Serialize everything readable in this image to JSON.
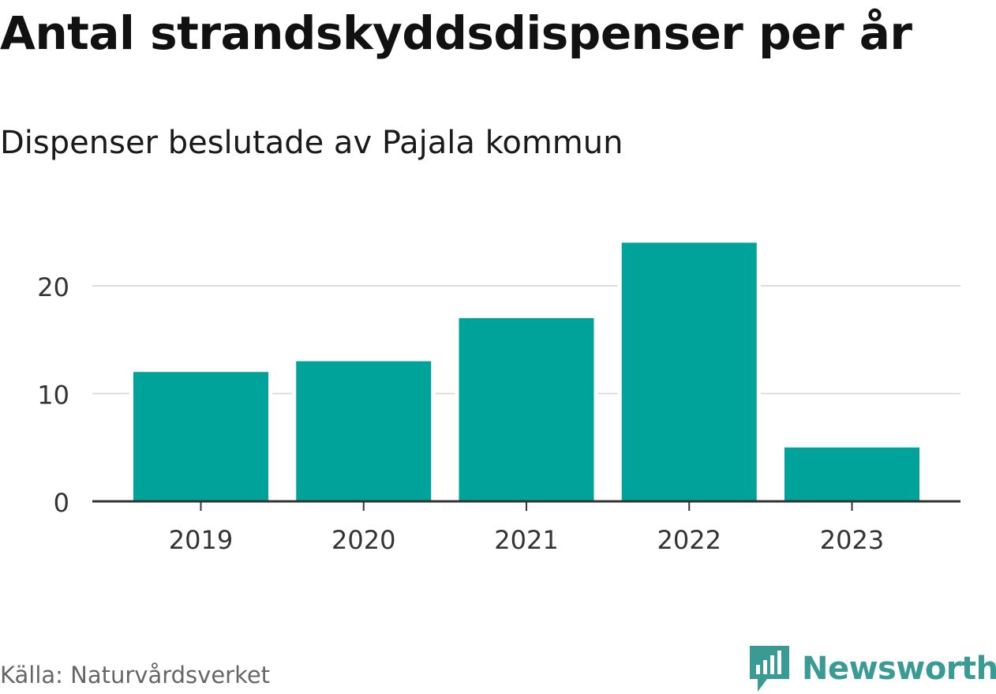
{
  "chart_data": {
    "type": "bar",
    "title": "Antal strandskyddsdispenser per år",
    "subtitle": "Dispenser beslutade av Pajala kommun",
    "categories": [
      "2019",
      "2020",
      "2021",
      "2022",
      "2023"
    ],
    "values": [
      12,
      13,
      17,
      24,
      5
    ],
    "yticks": [
      0,
      10,
      20
    ],
    "ylim": [
      0,
      26
    ],
    "xlabel": "",
    "ylabel": "",
    "grid": true,
    "bar_color": "#00a39a",
    "source": "Källa: Naturvårdsverket"
  },
  "branding": {
    "logo_text": "Newsworthy",
    "logo_icon": "newsworthy-chart-icon",
    "logo_color": "#3a9b94"
  }
}
